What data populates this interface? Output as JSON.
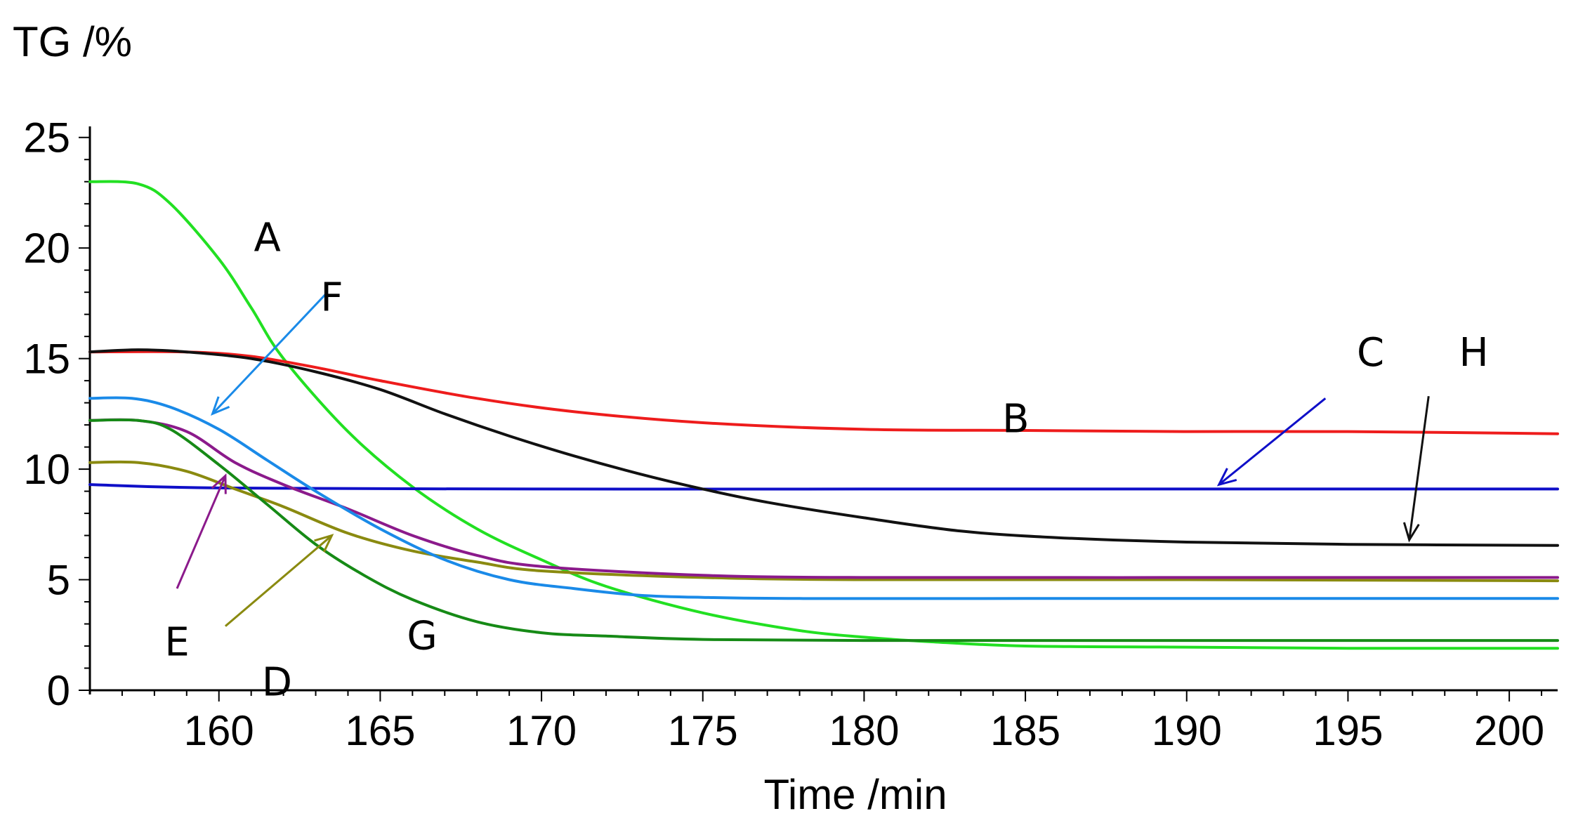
{
  "chart_data": {
    "type": "line",
    "title": "",
    "ylabel": "TG /%",
    "xlabel": "Time /min",
    "xlim": [
      156,
      201.5
    ],
    "ylim": [
      0,
      25.5
    ],
    "xticks": [
      160,
      165,
      170,
      175,
      180,
      185,
      190,
      195,
      200
    ],
    "yticks": [
      0,
      5,
      10,
      15,
      20,
      25
    ],
    "series": [
      {
        "name": "A",
        "color": "#22e022",
        "x": [
          156,
          157.5,
          158.5,
          160,
          161,
          162,
          164,
          166,
          168,
          170,
          172,
          175,
          178,
          180,
          182,
          185,
          190,
          195,
          201.5
        ],
        "y": [
          23.0,
          22.9,
          22.0,
          19.5,
          17.3,
          15.0,
          11.7,
          9.2,
          7.3,
          5.9,
          4.7,
          3.5,
          2.7,
          2.4,
          2.2,
          2.0,
          1.95,
          1.9,
          1.9
        ]
      },
      {
        "name": "B",
        "color": "#ee1c1c",
        "x": [
          156,
          159,
          161,
          163,
          165,
          168,
          171,
          175,
          180,
          185,
          190,
          195,
          201.5
        ],
        "y": [
          15.3,
          15.3,
          15.1,
          14.6,
          14.0,
          13.2,
          12.6,
          12.1,
          11.8,
          11.75,
          11.7,
          11.7,
          11.6
        ]
      },
      {
        "name": "C",
        "color": "#0f0fc8",
        "x": [
          156,
          160,
          170,
          180,
          190,
          201.5
        ],
        "y": [
          9.3,
          9.15,
          9.1,
          9.1,
          9.1,
          9.1
        ]
      },
      {
        "name": "D",
        "color": "#8a8a10",
        "x": [
          156,
          157.5,
          159,
          160.5,
          162,
          164,
          166,
          168,
          170,
          175,
          180,
          190,
          201.5
        ],
        "y": [
          10.3,
          10.3,
          9.9,
          9.1,
          8.3,
          7.1,
          6.3,
          5.8,
          5.4,
          5.1,
          5.0,
          5.0,
          4.95
        ]
      },
      {
        "name": "E",
        "color": "#8b1a8b",
        "x": [
          156,
          157.5,
          159,
          160.5,
          162,
          164,
          166,
          168,
          170,
          175,
          180,
          190,
          201.5
        ],
        "y": [
          12.2,
          12.2,
          11.7,
          10.3,
          9.3,
          8.2,
          7.0,
          6.1,
          5.6,
          5.2,
          5.1,
          5.1,
          5.1
        ]
      },
      {
        "name": "F",
        "color": "#1a8ae8",
        "x": [
          156,
          157.3,
          158.5,
          160,
          161.5,
          163,
          165,
          167,
          169,
          171,
          173,
          175,
          178,
          185,
          201.5
        ],
        "y": [
          13.2,
          13.2,
          12.8,
          11.8,
          10.4,
          9.0,
          7.3,
          5.9,
          5.0,
          4.6,
          4.3,
          4.2,
          4.15,
          4.15,
          4.15
        ]
      },
      {
        "name": "G",
        "color": "#168a16",
        "x": [
          156,
          157.5,
          158.5,
          160,
          161.5,
          163,
          164.5,
          166,
          168,
          170,
          172,
          175,
          180,
          190,
          201.5
        ],
        "y": [
          12.2,
          12.2,
          11.8,
          10.2,
          8.4,
          6.6,
          5.2,
          4.1,
          3.1,
          2.6,
          2.45,
          2.3,
          2.25,
          2.25,
          2.25
        ]
      },
      {
        "name": "H",
        "color": "#111111",
        "x": [
          156,
          157.5,
          159,
          161,
          163,
          165,
          167,
          169,
          171,
          173,
          175,
          177,
          180,
          183,
          186,
          190,
          195,
          201.5
        ],
        "y": [
          15.3,
          15.4,
          15.3,
          15.0,
          14.4,
          13.6,
          12.5,
          11.5,
          10.6,
          9.8,
          9.1,
          8.5,
          7.8,
          7.2,
          6.9,
          6.7,
          6.6,
          6.55
        ]
      }
    ],
    "annotations": [
      {
        "label": "A",
        "text_x": 161.5,
        "text_y": 20.5
      },
      {
        "label": "B",
        "text_x": 184.7,
        "text_y": 12.3
      },
      {
        "label": "C",
        "text_x": 195.7,
        "text_y": 15.3,
        "arrow_from": [
          194.3,
          13.2
        ],
        "arrow_to": [
          191.0,
          9.3
        ]
      },
      {
        "label": "D",
        "text_x": 161.8,
        "text_y": 0.4,
        "arrow_from": [
          160.2,
          2.9
        ],
        "arrow_to": [
          163.5,
          7.0
        ]
      },
      {
        "label": "E",
        "text_x": 158.7,
        "text_y": 2.2,
        "arrow_from": [
          158.7,
          4.6
        ],
        "arrow_to": [
          160.2,
          9.7
        ]
      },
      {
        "label": "F",
        "text_x": 163.5,
        "text_y": 17.8,
        "arrow_from": [
          163.3,
          17.9
        ],
        "arrow_to": [
          159.8,
          12.5
        ]
      },
      {
        "label": "G",
        "text_x": 166.3,
        "text_y": 2.5
      },
      {
        "label": "H",
        "text_x": 198.9,
        "text_y": 15.3,
        "arrow_from": [
          197.5,
          13.3
        ],
        "arrow_to": [
          196.9,
          6.8
        ]
      }
    ]
  }
}
